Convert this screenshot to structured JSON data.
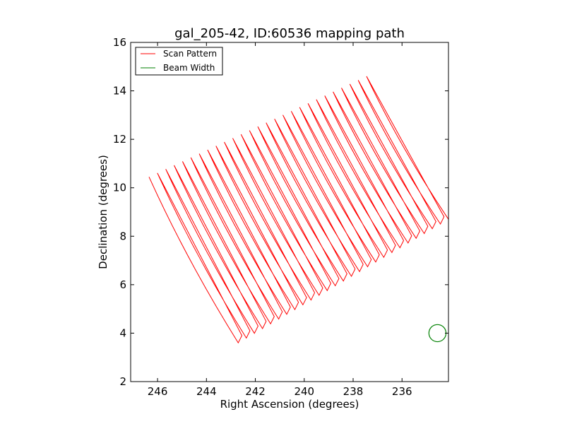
{
  "chart_data": {
    "type": "line",
    "title": "gal_205-42, ID:60536 mapping path",
    "xlabel": "Right Ascension (degrees)",
    "ylabel": "Declination (degrees)",
    "xlim": [
      247.1,
      234.1
    ],
    "ylim": [
      2,
      16
    ],
    "x_ticks": [
      246,
      244,
      242,
      240,
      238,
      236
    ],
    "y_ticks": [
      2,
      4,
      6,
      8,
      10,
      12,
      14,
      16
    ],
    "grid": false,
    "legend_position": "top-left",
    "scan": {
      "num_legs": 27,
      "first_leg_top": [
        246.35,
        10.45
      ],
      "first_leg_bottom": [
        242.7,
        3.6
      ],
      "last_leg_top": [
        237.45,
        14.6
      ],
      "last_leg_bottom": [
        234.1,
        8.7
      ],
      "hook_ra": -0.15,
      "hook_dec": 0.3
    },
    "beam": {
      "center": [
        234.55,
        4.0
      ],
      "radius_deg": 0.35
    },
    "series": [
      {
        "name": "Scan Pattern",
        "color": "#ff0000"
      },
      {
        "name": "Beam Width",
        "color": "#008000"
      }
    ]
  }
}
